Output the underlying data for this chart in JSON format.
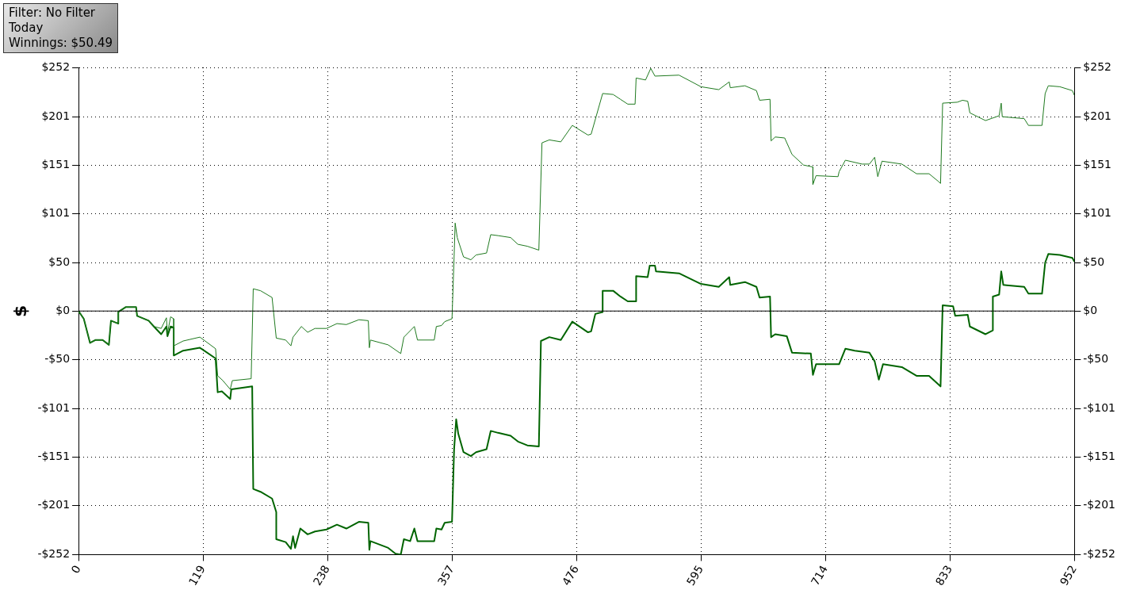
{
  "chart_data": {
    "type": "line",
    "ylabel": "$",
    "annotations": [
      "Filter: No Filter",
      "Today",
      "Winnings: $50.49"
    ],
    "xlim": [
      0,
      952
    ],
    "xticks": [
      0,
      119,
      238,
      357,
      476,
      595,
      714,
      833,
      952
    ],
    "ylim": [
      -252,
      252
    ],
    "yticks": [
      {
        "value": -252,
        "label": "-$252"
      },
      {
        "value": -201,
        "label": "-$201"
      },
      {
        "value": -151,
        "label": "-$151"
      },
      {
        "value": -101,
        "label": "-$101"
      },
      {
        "value": -50,
        "label": "-$50"
      },
      {
        "value": 0,
        "label": "$0"
      },
      {
        "value": 50,
        "label": "$50"
      },
      {
        "value": 101,
        "label": "$101"
      },
      {
        "value": 151,
        "label": "$151"
      },
      {
        "value": 201,
        "label": "$201"
      },
      {
        "value": 252,
        "label": "$252"
      }
    ],
    "y2lim": [
      -252,
      252
    ],
    "y2ticks": [
      {
        "value": -252,
        "label": "-$252"
      },
      {
        "value": -201,
        "label": "-$201"
      },
      {
        "value": -151,
        "label": "-$151"
      },
      {
        "value": -101,
        "label": "-$101"
      },
      {
        "value": -50,
        "label": "-$50"
      },
      {
        "value": 0,
        "label": "$0"
      },
      {
        "value": 50,
        "label": "$50"
      },
      {
        "value": 101,
        "label": "$101"
      },
      {
        "value": 151,
        "label": "$151"
      },
      {
        "value": 201,
        "label": "$201"
      },
      {
        "value": 252,
        "label": "$252"
      }
    ],
    "grid": true,
    "legend": false,
    "marker": "none",
    "ref_lines": [
      {
        "axis": "y",
        "value": 0,
        "color": "#000000"
      }
    ],
    "series": [
      {
        "color": "#1f7a1f",
        "x": [
          0,
          5,
          11,
          16,
          23,
          29,
          31,
          38,
          38,
          45,
          55,
          56,
          67,
          72,
          79,
          84,
          85,
          88,
          91,
          91,
          100,
          116,
          131,
          133,
          138,
          145,
          147,
          165,
          167,
          174,
          185,
          189,
          198,
          203,
          205,
          213,
          219,
          226,
          237,
          247,
          256,
          268,
          277,
          278,
          279,
          296,
          308,
          311,
          321,
          324,
          340,
          342,
          347,
          350,
          357,
          359,
          360,
          362,
          368,
          375,
          380,
          390,
          394,
          401,
          413,
          420,
          429,
          440,
          443,
          450,
          461,
          472,
          487,
          490,
          501,
          511,
          518,
          525,
          532,
          533,
          542,
          547,
          551,
          574,
          595,
          612,
          622,
          623,
          637,
          648,
          651,
          661,
          662,
          666,
          675,
          682,
          693,
          702,
          702,
          705,
          726,
          727,
          733,
          749,
          756,
          761,
          764,
          768,
          787,
          801,
          813,
          822,
          824,
          826,
          840,
          845,
          850,
          852,
          867,
          880,
          882,
          883,
          904,
          908,
          921,
          924,
          927,
          938,
          950,
          952
        ],
        "values": [
          0,
          -8,
          -33,
          -30,
          -30,
          -35,
          -10,
          -13,
          -1,
          4,
          4,
          -5,
          -10,
          -16,
          -18,
          -7,
          -23,
          -6,
          -8,
          -36,
          -31,
          -27,
          -39,
          -67,
          -72,
          -81,
          -72,
          -70,
          23,
          21,
          14,
          -28,
          -30,
          -36,
          -27,
          -16,
          -22,
          -18,
          -18,
          -13,
          -14,
          -9,
          -10,
          -38,
          -30,
          -35,
          -44,
          -27,
          -16,
          -30,
          -30,
          -16,
          -15,
          -11,
          -8,
          56,
          91,
          76,
          56,
          53,
          58,
          60,
          79,
          78,
          76,
          69,
          67,
          63,
          174,
          177,
          175,
          192,
          182,
          183,
          225,
          224,
          219,
          214,
          214,
          241,
          239,
          251,
          243,
          244,
          232,
          229,
          237,
          231,
          233,
          228,
          218,
          219,
          176,
          180,
          179,
          162,
          151,
          149,
          131,
          140,
          139,
          144,
          156,
          152,
          152,
          159,
          139,
          155,
          152,
          142,
          142,
          134,
          132,
          215,
          216,
          218,
          217,
          205,
          197,
          202,
          215,
          201,
          199,
          192,
          192,
          225,
          233,
          232,
          228,
          223
        ]
      },
      {
        "color": "#006400",
        "x": [
          0,
          5,
          11,
          16,
          23,
          29,
          31,
          38,
          38,
          45,
          55,
          56,
          67,
          72,
          79,
          84,
          85,
          88,
          91,
          91,
          100,
          116,
          131,
          133,
          137,
          145,
          146,
          166,
          167,
          174,
          185,
          189,
          189,
          198,
          203,
          205,
          207,
          212,
          219,
          226,
          237,
          247,
          256,
          268,
          277,
          278,
          279,
          296,
          303,
          308,
          311,
          317,
          321,
          324,
          340,
          342,
          347,
          350,
          357,
          359,
          361,
          363,
          368,
          375,
          380,
          390,
          394,
          401,
          413,
          420,
          429,
          440,
          442,
          450,
          461,
          472,
          487,
          490,
          494,
          501,
          501,
          511,
          518,
          525,
          533,
          533,
          544,
          546,
          551,
          552,
          574,
          595,
          612,
          622,
          623,
          637,
          648,
          651,
          661,
          662,
          666,
          677,
          682,
          700,
          702,
          705,
          727,
          733,
          742,
          756,
          761,
          765,
          769,
          787,
          801,
          813,
          824,
          826,
          836,
          838,
          850,
          852,
          867,
          874,
          874,
          880,
          882,
          884,
          904,
          908,
          921,
          924,
          927,
          938,
          950,
          952
        ],
        "values": [
          0,
          -8,
          -33,
          -30,
          -30,
          -35,
          -10,
          -13,
          -1,
          4,
          4,
          -5,
          -10,
          -16,
          -24,
          -16,
          -26,
          -16,
          -17,
          -46,
          -41,
          -38,
          -49,
          -84,
          -83,
          -91,
          -81,
          -78,
          -184,
          -187,
          -194,
          -208,
          -236,
          -239,
          -246,
          -233,
          -245,
          -225,
          -231,
          -228,
          -226,
          -221,
          -225,
          -218,
          -219,
          -247,
          -238,
          -245,
          -251,
          -252,
          -236,
          -238,
          -225,
          -238,
          -238,
          -225,
          -226,
          -219,
          -218,
          -143,
          -112,
          -127,
          -146,
          -150,
          -146,
          -143,
          -124,
          -126,
          -129,
          -135,
          -139,
          -140,
          -31,
          -27,
          -30,
          -11,
          -22,
          -21,
          -3,
          -1,
          21,
          21,
          15,
          10,
          10,
          36,
          35,
          47,
          47,
          41,
          39,
          28,
          25,
          35,
          27,
          30,
          25,
          14,
          15,
          -27,
          -24,
          -26,
          -43,
          -44,
          -66,
          -55,
          -55,
          -39,
          -41,
          -43,
          -52,
          -71,
          -55,
          -58,
          -67,
          -67,
          -78,
          6,
          5,
          -5,
          -4,
          -16,
          -24,
          -20,
          15,
          17,
          41,
          27,
          25,
          18,
          18,
          50,
          59,
          58,
          55,
          51
        ]
      }
    ]
  }
}
